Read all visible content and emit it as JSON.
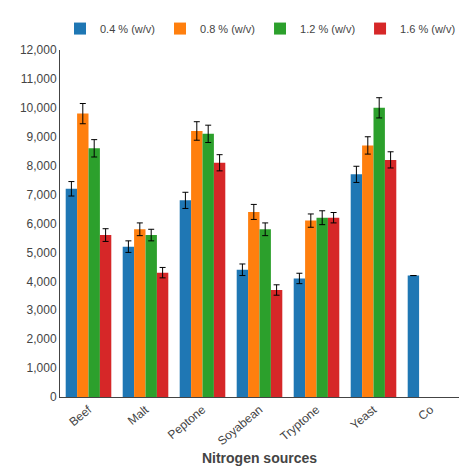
{
  "chart_data": {
    "type": "bar",
    "xlabel": "Nitrogen sources",
    "categories": [
      "Beef",
      "Malt",
      "Peptone",
      "Soyabean",
      "Tryptone",
      "Yeast",
      "Co"
    ],
    "series": [
      {
        "name": "0.4 % (w/v)",
        "values": [
          7200,
          5200,
          6800,
          4400,
          4100,
          7700,
          4200
        ],
        "errors": [
          250,
          200,
          280,
          200,
          180,
          280,
          0
        ]
      },
      {
        "name": "0.8 % (w/v)",
        "values": [
          9800,
          5800,
          9200,
          6400,
          6100,
          8700,
          0
        ],
        "errors": [
          350,
          220,
          320,
          260,
          230,
          300,
          0
        ]
      },
      {
        "name": "1.2 % (w/v)",
        "values": [
          8600,
          5600,
          9100,
          5800,
          6200,
          10000,
          0
        ],
        "errors": [
          300,
          200,
          300,
          220,
          240,
          350,
          0
        ]
      },
      {
        "name": "1.6 % (w/v)",
        "values": [
          5600,
          4300,
          8100,
          3700,
          6200,
          8200,
          0
        ],
        "errors": [
          220,
          180,
          280,
          180,
          180,
          280,
          0
        ]
      }
    ],
    "ylim": [
      0,
      12000
    ],
    "yticks": [
      0,
      {
        "value": 1000,
        "label": "1,000"
      },
      {
        "value": 2000,
        "label": "2,000"
      },
      {
        "value": 3000,
        "label": "3,000"
      },
      {
        "value": 4000,
        "label": "4,000"
      },
      {
        "value": 5000,
        "label": "5,000"
      },
      {
        "value": 6000,
        "label": "6,000"
      },
      {
        "value": 7000,
        "label": "7,000"
      },
      {
        "value": 8000,
        "label": "8,000"
      },
      {
        "value": 9000,
        "label": "9,000"
      },
      {
        "value": 10000,
        "label": "10,000"
      },
      {
        "value": 11000,
        "label": "11,000"
      },
      {
        "value": 12000,
        "label": "12,000"
      }
    ],
    "grid": false,
    "legend": "upper left"
  }
}
